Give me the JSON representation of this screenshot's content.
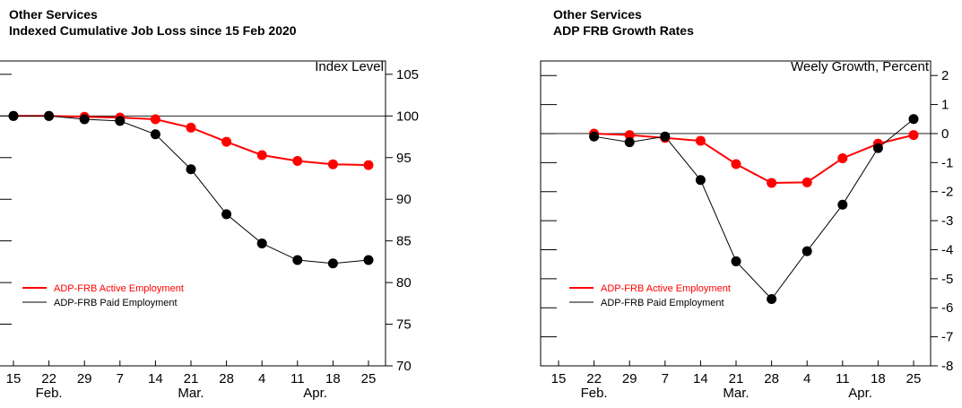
{
  "chart_data": [
    {
      "type": "line",
      "title": "Other Services",
      "subtitle": "Indexed Cumulative Job Loss since 15 Feb 2020",
      "y_label": "Index Level",
      "categories": [
        "15",
        "22",
        "29",
        "7",
        "14",
        "21",
        "28",
        "4",
        "11",
        "18",
        "25"
      ],
      "month_groups": [
        {
          "label": "Feb.",
          "start": 1,
          "end": 1
        },
        {
          "label": "Mar.",
          "start": 5,
          "end": 5
        },
        {
          "label": "Apr.",
          "start": 8,
          "end": 9
        }
      ],
      "series": [
        {
          "name": "ADP-FRB Active Employment",
          "color": "#ff0000",
          "values": [
            100,
            100,
            99.9,
            99.8,
            99.6,
            98.6,
            96.9,
            95.3,
            94.6,
            94.2,
            94.1
          ]
        },
        {
          "name": "ADP-FRB Paid Employment",
          "color": "#000000",
          "values": [
            100,
            100,
            99.6,
            99.4,
            97.8,
            93.6,
            88.2,
            84.7,
            82.7,
            82.3,
            82.7
          ]
        }
      ],
      "reference_line": 100,
      "ylim": [
        70,
        106.6
      ],
      "yticks": [
        70,
        75,
        80,
        85,
        90,
        95,
        100,
        105
      ],
      "legend": "lower left"
    },
    {
      "type": "line",
      "title": "Other Services",
      "subtitle": "ADP FRB Growth Rates",
      "y_label": "Weely Growth, Percent",
      "categories": [
        "15",
        "22",
        "29",
        "7",
        "14",
        "21",
        "28",
        "4",
        "11",
        "18",
        "25"
      ],
      "month_groups": [
        {
          "label": "Feb.",
          "start": 1,
          "end": 1
        },
        {
          "label": "Mar.",
          "start": 5,
          "end": 5
        },
        {
          "label": "Apr.",
          "start": 8,
          "end": 9
        }
      ],
      "series": [
        {
          "name": "ADP-FRB Active Employment",
          "color": "#ff0000",
          "values": [
            null,
            0,
            -0.05,
            -0.15,
            -0.25,
            -1.05,
            -1.7,
            -1.68,
            -0.85,
            -0.35,
            -0.05
          ]
        },
        {
          "name": "ADP-FRB Paid Employment",
          "color": "#000000",
          "values": [
            null,
            -0.1,
            -0.3,
            -0.1,
            -1.6,
            -4.4,
            -5.7,
            -4.05,
            -2.45,
            -0.5,
            0.5
          ]
        }
      ],
      "reference_line": 0,
      "ylim": [
        -8,
        2.5
      ],
      "yticks": [
        -8,
        -7,
        -6,
        -5,
        -4,
        -3,
        -2,
        -1,
        0,
        1,
        2
      ],
      "legend": "lower left"
    }
  ]
}
